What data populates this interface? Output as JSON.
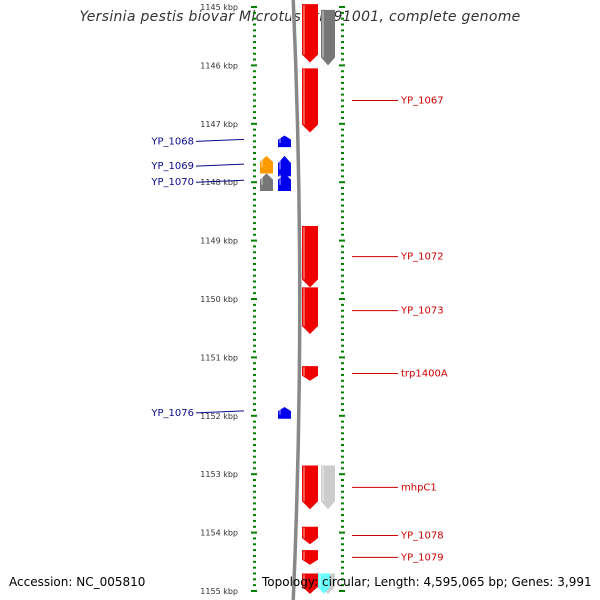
{
  "title": "Yersinia pestis biovar Microtus str. 91001, complete genome",
  "footer": {
    "accession": "Accession: NC_005810",
    "topology": "Topology: circular; Length: 4,595,065 bp; Genes: 3,991"
  },
  "colors": {
    "forward_gene": "#ee0000",
    "reverse_gene": "#0000ee",
    "highlight_orange": "#ff9900",
    "pseudo_gene": "#777777",
    "light_gray_gene": "#cccccc",
    "cyan_gene": "#66ffff",
    "tick_green": "#008000",
    "left_label": "#0a0a8c",
    "right_label": "#cc0000",
    "backbone": "#888888"
  },
  "axis": {
    "unit": "kbp",
    "start_kbp": 1145,
    "end_kbp": 1155,
    "tick_labels": [
      "1145 kbp",
      "1146 kbp",
      "1147 kbp",
      "1148 kbp",
      "1149 kbp",
      "1150 kbp",
      "1151 kbp",
      "1152 kbp",
      "1153 kbp",
      "1154 kbp",
      "1155 kbp"
    ]
  },
  "genes": [
    {
      "strand": "+",
      "start_kbp": 1144.95,
      "end_kbp": 1145.95,
      "color": "forward_gene"
    },
    {
      "strand": "+",
      "start_kbp": 1145.05,
      "end_kbp": 1146.0,
      "color": "pseudo_gene"
    },
    {
      "strand": "+",
      "start_kbp": 1146.05,
      "end_kbp": 1147.15,
      "color": "forward_gene",
      "label": "YP_1067"
    },
    {
      "strand": "-",
      "start_kbp": 1147.2,
      "end_kbp": 1147.4,
      "color": "reverse_gene",
      "label": "YP_1068"
    },
    {
      "strand": "-",
      "start_kbp": 1147.55,
      "end_kbp": 1147.9,
      "color": "reverse_gene",
      "label": "YP_1069"
    },
    {
      "strand": "-",
      "start_kbp": 1147.55,
      "end_kbp": 1147.85,
      "color": "highlight_orange"
    },
    {
      "strand": "-",
      "start_kbp": 1147.85,
      "end_kbp": 1148.15,
      "color": "pseudo_gene"
    },
    {
      "strand": "-",
      "start_kbp": 1147.85,
      "end_kbp": 1148.15,
      "color": "reverse_gene",
      "label": "YP_1070"
    },
    {
      "strand": "+",
      "start_kbp": 1148.75,
      "end_kbp": 1149.8,
      "color": "forward_gene",
      "label": "YP_1072"
    },
    {
      "strand": "+",
      "start_kbp": 1149.8,
      "end_kbp": 1150.6,
      "color": "forward_gene",
      "label": "YP_1073"
    },
    {
      "strand": "+",
      "start_kbp": 1151.15,
      "end_kbp": 1151.4,
      "color": "forward_gene",
      "label": "trp1400A"
    },
    {
      "strand": "-",
      "start_kbp": 1151.85,
      "end_kbp": 1152.05,
      "color": "reverse_gene",
      "label": "YP_1076"
    },
    {
      "strand": "+",
      "start_kbp": 1152.85,
      "end_kbp": 1153.6,
      "color": "forward_gene",
      "label": "mhpC1"
    },
    {
      "strand": "+",
      "start_kbp": 1152.85,
      "end_kbp": 1153.6,
      "color": "light_gray_gene"
    },
    {
      "strand": "+",
      "start_kbp": 1153.9,
      "end_kbp": 1154.2,
      "color": "forward_gene",
      "label": "YP_1078"
    },
    {
      "strand": "+",
      "start_kbp": 1154.3,
      "end_kbp": 1154.55,
      "color": "forward_gene",
      "label": "YP_1079"
    },
    {
      "strand": "+",
      "start_kbp": 1154.7,
      "end_kbp": 1155.05,
      "color": "forward_gene"
    },
    {
      "strand": "+",
      "start_kbp": 1154.7,
      "end_kbp": 1155.05,
      "color": "light_gray_gene"
    },
    {
      "strand": "+",
      "start_kbp": 1154.7,
      "end_kbp": 1155.05,
      "color": "cyan_gene"
    }
  ]
}
